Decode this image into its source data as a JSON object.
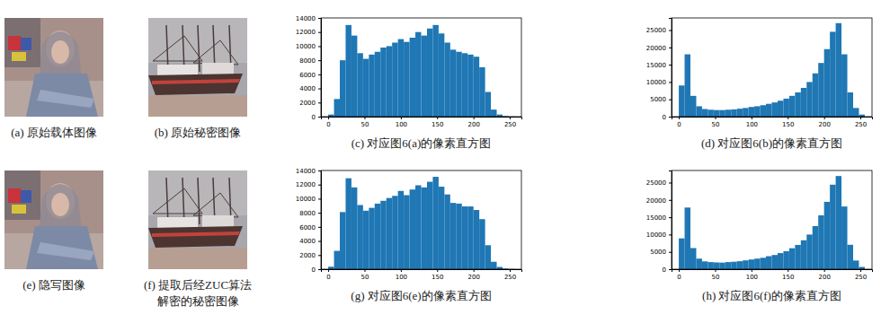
{
  "chart_data": [
    {
      "type": "histogram",
      "title": "(c) 对应图6(a)的像素直方图",
      "color": "#1f77b4",
      "grid": false,
      "bins": [
        0,
        8,
        16,
        24,
        32,
        40,
        48,
        56,
        64,
        72,
        80,
        88,
        96,
        104,
        112,
        120,
        128,
        136,
        144,
        152,
        160,
        168,
        176,
        184,
        192,
        200,
        208,
        216,
        224,
        232,
        240,
        248,
        256
      ],
      "values": [
        300,
        2500,
        8000,
        13000,
        11500,
        9000,
        8200,
        8800,
        9200,
        9800,
        10000,
        10500,
        11000,
        10600,
        11200,
        12000,
        11500,
        12500,
        13000,
        11800,
        10500,
        9500,
        9200,
        9000,
        8800,
        8500,
        7000,
        3500,
        1000,
        300,
        80,
        20
      ],
      "xlim": [
        -10,
        266
      ],
      "xticks": [
        0,
        50,
        100,
        150,
        200,
        250
      ],
      "ylim": [
        0,
        14000
      ],
      "yticks": [
        0,
        2000,
        4000,
        6000,
        8000,
        10000,
        12000,
        14000
      ]
    },
    {
      "type": "histogram",
      "title": "(d) 对应图6(b)的像素直方图",
      "color": "#1f77b4",
      "grid": false,
      "bins": [
        0,
        8,
        16,
        24,
        32,
        40,
        48,
        56,
        64,
        72,
        80,
        88,
        96,
        104,
        112,
        120,
        128,
        136,
        144,
        152,
        160,
        168,
        176,
        184,
        192,
        200,
        208,
        216,
        224,
        232,
        240,
        248,
        256
      ],
      "values": [
        9000,
        18000,
        6000,
        3000,
        2200,
        2000,
        1900,
        1900,
        2000,
        2100,
        2300,
        2500,
        2800,
        3000,
        3300,
        3700,
        4100,
        4600,
        5200,
        6000,
        7000,
        8300,
        10000,
        12500,
        15500,
        19500,
        24500,
        27000,
        18000,
        7000,
        2500,
        600
      ],
      "xlim": [
        -10,
        266
      ],
      "xticks": [
        0,
        50,
        100,
        150,
        200,
        250
      ],
      "ylim": [
        0,
        28500
      ],
      "yticks": [
        0,
        5000,
        10000,
        15000,
        20000,
        25000
      ]
    },
    {
      "type": "histogram",
      "title": "(g) 对应图6(e)的像素直方图",
      "color": "#1f77b4",
      "grid": false,
      "bins": [
        0,
        8,
        16,
        24,
        32,
        40,
        48,
        56,
        64,
        72,
        80,
        88,
        96,
        104,
        112,
        120,
        128,
        136,
        144,
        152,
        160,
        168,
        176,
        184,
        192,
        200,
        208,
        216,
        224,
        232,
        240,
        248,
        256
      ],
      "values": [
        350,
        2600,
        8100,
        12900,
        11600,
        9100,
        8300,
        8700,
        9300,
        9700,
        10100,
        10400,
        11100,
        10500,
        11300,
        11900,
        11600,
        12400,
        13100,
        11700,
        10600,
        9400,
        9300,
        8900,
        8900,
        8400,
        7100,
        3400,
        1050,
        320,
        90,
        25
      ],
      "xlim": [
        -10,
        266
      ],
      "xticks": [
        0,
        50,
        100,
        150,
        200,
        250
      ],
      "ylim": [
        0,
        14000
      ],
      "yticks": [
        0,
        2000,
        4000,
        6000,
        8000,
        10000,
        12000,
        14000
      ]
    },
    {
      "type": "histogram",
      "title": "(h) 对应图6(f)的像素直方图",
      "color": "#1f77b4",
      "grid": false,
      "bins": [
        0,
        8,
        16,
        24,
        32,
        40,
        48,
        56,
        64,
        72,
        80,
        88,
        96,
        104,
        112,
        120,
        128,
        136,
        144,
        152,
        160,
        168,
        176,
        184,
        192,
        200,
        208,
        216,
        224,
        232,
        240,
        248,
        256
      ],
      "values": [
        8900,
        17800,
        6100,
        3050,
        2250,
        2050,
        1950,
        1900,
        2050,
        2150,
        2300,
        2550,
        2800,
        3050,
        3300,
        3750,
        4100,
        4650,
        5200,
        6050,
        7000,
        8350,
        10000,
        12450,
        15550,
        19450,
        24400,
        26900,
        18100,
        7050,
        2500,
        650
      ],
      "xlim": [
        -10,
        266
      ],
      "xticks": [
        0,
        50,
        100,
        150,
        200,
        250
      ],
      "ylim": [
        0,
        28500
      ],
      "yticks": [
        0,
        5000,
        10000,
        15000,
        20000,
        25000
      ]
    }
  ],
  "images": [
    {
      "caption": [
        "(a) 原始载体图像"
      ]
    },
    {
      "caption": [
        "(b) 原始秘密图像"
      ]
    },
    {
      "caption": [
        "(e) 隐写图像"
      ]
    },
    {
      "caption": [
        "(f) 提取后经ZUC算法",
        "解密的秘密图像"
      ]
    }
  ]
}
